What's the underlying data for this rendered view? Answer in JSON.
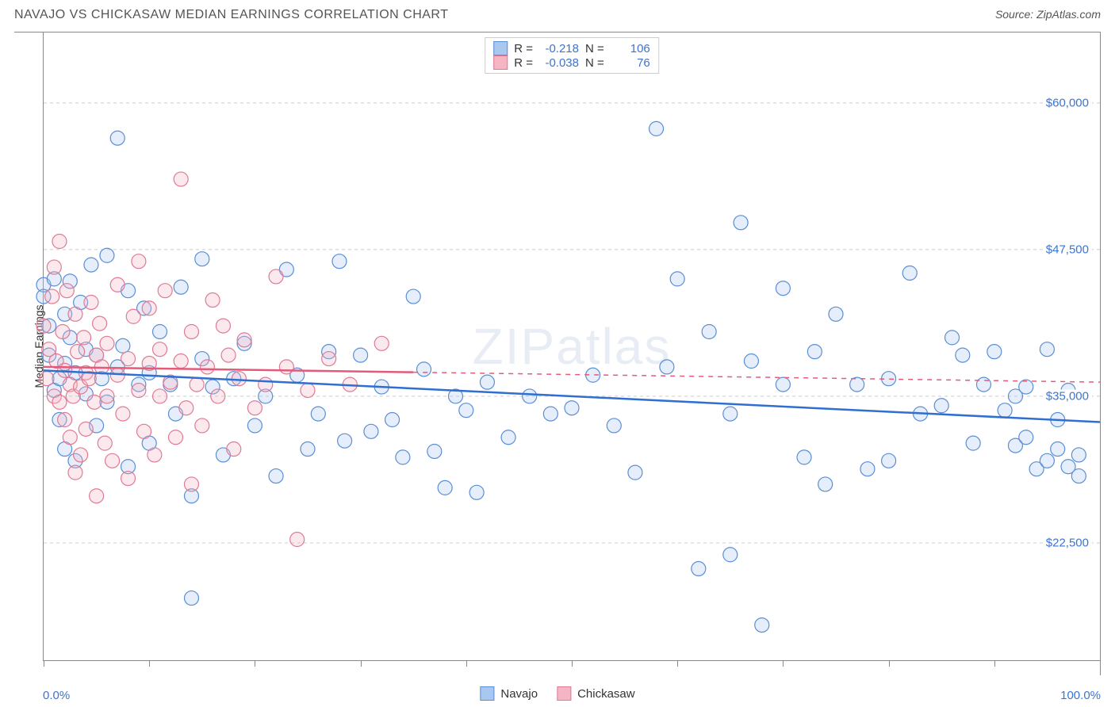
{
  "title": "NAVAJO VS CHICKASAW MEDIAN EARNINGS CORRELATION CHART",
  "source_label": "Source: ZipAtlas.com",
  "watermark": "ZIPatlas",
  "ylabel": "Median Earnings",
  "chart": {
    "type": "scatter",
    "xlim": [
      0,
      100
    ],
    "ylim": [
      12500,
      66000
    ],
    "x_ticks_percent": [
      0,
      10,
      20,
      30,
      40,
      50,
      60,
      70,
      80,
      90,
      100
    ],
    "x_min_label": "0.0%",
    "x_max_label": "100.0%",
    "y_gridlines": [
      {
        "value": 22500,
        "label": "$22,500"
      },
      {
        "value": 35000,
        "label": "$35,000"
      },
      {
        "value": 47500,
        "label": "$47,500"
      },
      {
        "value": 60000,
        "label": "$60,000"
      }
    ],
    "grid_color": "#cccccc",
    "axis_color": "#888888",
    "background_color": "#ffffff",
    "marker_radius": 9,
    "marker_stroke_width": 1.2,
    "marker_fill_opacity": 0.3,
    "trend_line_width": 2.5,
    "trend_dash_width": 1.5
  },
  "series": [
    {
      "name": "Navajo",
      "label": "Navajo",
      "fill": "#a9c8f0",
      "stroke": "#5a8ed6",
      "trend_color": "#2f6fd0",
      "trend_solid_xrange": [
        0,
        100
      ],
      "trend_line": {
        "x1": 0,
        "y1": 37200,
        "x2": 100,
        "y2": 32800
      },
      "R": "-0.218",
      "N": "106",
      "points": [
        [
          0,
          44500
        ],
        [
          0,
          43500
        ],
        [
          0.5,
          41000
        ],
        [
          0.5,
          38500
        ],
        [
          1,
          35500
        ],
        [
          1,
          45000
        ],
        [
          1.5,
          36500
        ],
        [
          1.5,
          33000
        ],
        [
          2,
          37800
        ],
        [
          2,
          42000
        ],
        [
          2,
          30500
        ],
        [
          2.5,
          44800
        ],
        [
          2.5,
          40000
        ],
        [
          3,
          37000
        ],
        [
          3,
          29500
        ],
        [
          3.5,
          43000
        ],
        [
          4,
          39000
        ],
        [
          4,
          35200
        ],
        [
          4.5,
          46200
        ],
        [
          5,
          32500
        ],
        [
          5,
          38500
        ],
        [
          5.5,
          36500
        ],
        [
          6,
          34500
        ],
        [
          6,
          47000
        ],
        [
          7,
          37500
        ],
        [
          7,
          57000
        ],
        [
          7.5,
          39300
        ],
        [
          8,
          44000
        ],
        [
          8,
          29000
        ],
        [
          9,
          36000
        ],
        [
          9.5,
          42500
        ],
        [
          10,
          37000
        ],
        [
          10,
          31000
        ],
        [
          11,
          40500
        ],
        [
          12,
          36000
        ],
        [
          12.5,
          33500
        ],
        [
          13,
          44300
        ],
        [
          14,
          17800
        ],
        [
          14,
          26500
        ],
        [
          15,
          46700
        ],
        [
          15,
          38200
        ],
        [
          16,
          35800
        ],
        [
          17,
          30000
        ],
        [
          18,
          36500
        ],
        [
          19,
          39500
        ],
        [
          20,
          32500
        ],
        [
          21,
          35000
        ],
        [
          22,
          28200
        ],
        [
          23,
          45800
        ],
        [
          24,
          36800
        ],
        [
          25,
          30500
        ],
        [
          26,
          33500
        ],
        [
          27,
          38800
        ],
        [
          28,
          46500
        ],
        [
          28.5,
          31200
        ],
        [
          30,
          38500
        ],
        [
          31,
          32000
        ],
        [
          32,
          35800
        ],
        [
          33,
          33000
        ],
        [
          34,
          29800
        ],
        [
          35,
          43500
        ],
        [
          36,
          37300
        ],
        [
          37,
          30300
        ],
        [
          38,
          27200
        ],
        [
          39,
          35000
        ],
        [
          40,
          33800
        ],
        [
          41,
          26800
        ],
        [
          42,
          36200
        ],
        [
          44,
          31500
        ],
        [
          46,
          35000
        ],
        [
          48,
          33500
        ],
        [
          50,
          34000
        ],
        [
          52,
          36800
        ],
        [
          54,
          32500
        ],
        [
          56,
          28500
        ],
        [
          58,
          57800
        ],
        [
          59,
          37500
        ],
        [
          60,
          45000
        ],
        [
          62,
          20300
        ],
        [
          63,
          40500
        ],
        [
          65,
          33500
        ],
        [
          65,
          21500
        ],
        [
          66,
          49800
        ],
        [
          67,
          38000
        ],
        [
          68,
          15500
        ],
        [
          70,
          36000
        ],
        [
          70,
          44200
        ],
        [
          72,
          29800
        ],
        [
          73,
          38800
        ],
        [
          74,
          27500
        ],
        [
          75,
          42000
        ],
        [
          77,
          36000
        ],
        [
          78,
          28800
        ],
        [
          80,
          36500
        ],
        [
          80,
          29500
        ],
        [
          82,
          45500
        ],
        [
          83,
          33500
        ],
        [
          85,
          34200
        ],
        [
          86,
          40000
        ],
        [
          87,
          38500
        ],
        [
          88,
          31000
        ],
        [
          89,
          36000
        ],
        [
          90,
          38800
        ],
        [
          91,
          33800
        ],
        [
          92,
          35000
        ],
        [
          92,
          30800
        ],
        [
          93,
          31500
        ],
        [
          93,
          35800
        ],
        [
          94,
          28800
        ],
        [
          95,
          29500
        ],
        [
          95,
          39000
        ],
        [
          96,
          33000
        ],
        [
          96,
          30500
        ],
        [
          97,
          29000
        ],
        [
          97,
          35500
        ],
        [
          98,
          30000
        ],
        [
          98,
          28200
        ]
      ]
    },
    {
      "name": "Chickasaw",
      "label": "Chickasaw",
      "fill": "#f5b5c4",
      "stroke": "#e07a94",
      "trend_color": "#e35a7a",
      "trend_solid_xrange": [
        0,
        35
      ],
      "trend_line": {
        "x1": 0,
        "y1": 37500,
        "x2": 100,
        "y2": 36200
      },
      "R": "-0.038",
      "N": "76",
      "points": [
        [
          0,
          41000
        ],
        [
          0.3,
          36500
        ],
        [
          0.5,
          39000
        ],
        [
          0.8,
          43500
        ],
        [
          1,
          35000
        ],
        [
          1,
          46000
        ],
        [
          1.2,
          38000
        ],
        [
          1.5,
          34500
        ],
        [
          1.5,
          48200
        ],
        [
          1.8,
          40500
        ],
        [
          2,
          33000
        ],
        [
          2,
          37200
        ],
        [
          2.2,
          44000
        ],
        [
          2.5,
          36000
        ],
        [
          2.5,
          31500
        ],
        [
          2.8,
          35000
        ],
        [
          3,
          42000
        ],
        [
          3,
          28500
        ],
        [
          3.2,
          38800
        ],
        [
          3.5,
          35800
        ],
        [
          3.5,
          30000
        ],
        [
          3.8,
          40000
        ],
        [
          4,
          37000
        ],
        [
          4,
          32200
        ],
        [
          4.3,
          36500
        ],
        [
          4.5,
          43000
        ],
        [
          4.8,
          34500
        ],
        [
          5,
          38500
        ],
        [
          5,
          26500
        ],
        [
          5.3,
          41200
        ],
        [
          5.5,
          37500
        ],
        [
          5.8,
          31000
        ],
        [
          6,
          35000
        ],
        [
          6,
          39500
        ],
        [
          6.5,
          29500
        ],
        [
          7,
          44500
        ],
        [
          7,
          36800
        ],
        [
          7.5,
          33500
        ],
        [
          8,
          38200
        ],
        [
          8,
          28000
        ],
        [
          8.5,
          41800
        ],
        [
          9,
          46500
        ],
        [
          9,
          35500
        ],
        [
          9.5,
          32000
        ],
        [
          10,
          37800
        ],
        [
          10,
          42500
        ],
        [
          10.5,
          30000
        ],
        [
          11,
          35000
        ],
        [
          11,
          39000
        ],
        [
          11.5,
          44000
        ],
        [
          12,
          36200
        ],
        [
          12.5,
          31500
        ],
        [
          13,
          38000
        ],
        [
          13,
          53500
        ],
        [
          13.5,
          34000
        ],
        [
          14,
          40500
        ],
        [
          14,
          27500
        ],
        [
          14.5,
          36000
        ],
        [
          15,
          32500
        ],
        [
          15.5,
          37500
        ],
        [
          16,
          43200
        ],
        [
          16.5,
          35000
        ],
        [
          17,
          41000
        ],
        [
          17.5,
          38500
        ],
        [
          18,
          30500
        ],
        [
          18.5,
          36500
        ],
        [
          19,
          39800
        ],
        [
          20,
          34000
        ],
        [
          21,
          36000
        ],
        [
          22,
          45200
        ],
        [
          23,
          37500
        ],
        [
          24,
          22800
        ],
        [
          25,
          35500
        ],
        [
          27,
          38200
        ],
        [
          29,
          36000
        ],
        [
          32,
          39500
        ]
      ]
    }
  ],
  "legend_top": {
    "R_label": "R =",
    "N_label": "N ="
  },
  "legend_bottom": {
    "items": [
      "Navajo",
      "Chickasaw"
    ]
  }
}
